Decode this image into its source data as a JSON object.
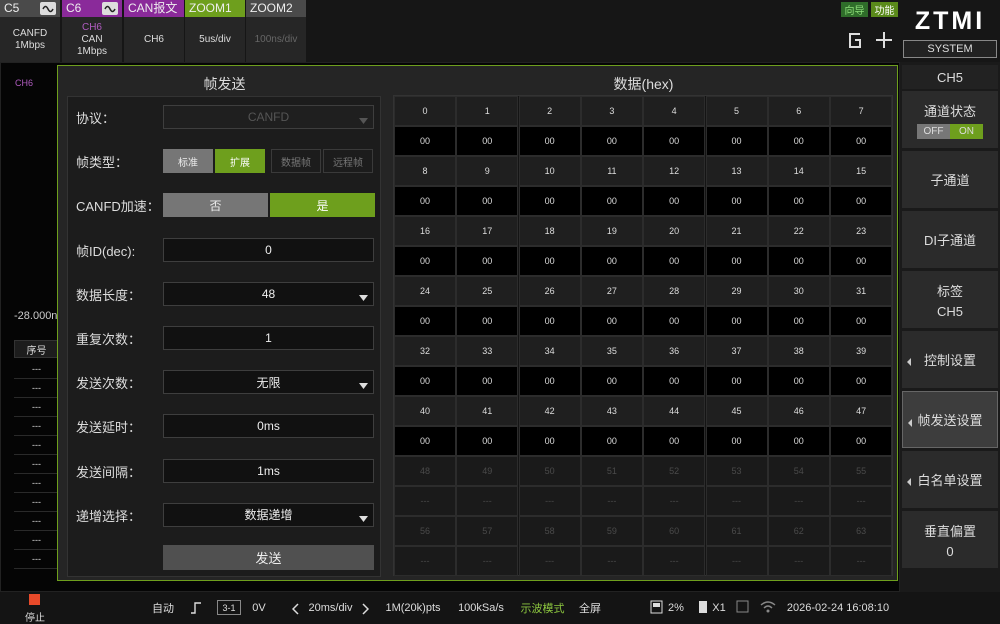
{
  "top_tabs": [
    {
      "name": "C5",
      "lines": [
        "CANFD",
        "1Mbps"
      ]
    },
    {
      "name": "C6",
      "lines": [
        "CH6",
        "CAN",
        "1Mbps"
      ]
    },
    {
      "name": "CAN报文",
      "lines": [
        "CH6"
      ]
    },
    {
      "name": "ZOOM1",
      "lines": [
        "5us/div"
      ]
    },
    {
      "name": "ZOOM2",
      "lines": [
        "100ns/div"
      ]
    }
  ],
  "top_right": {
    "guide": "向导",
    "function": "功能"
  },
  "logo": {
    "brand": "ZTMI",
    "system": "SYSTEM"
  },
  "sidebar": {
    "channel": "CH5",
    "items": [
      {
        "label": "通道状态",
        "toggle": [
          "OFF",
          "ON"
        ]
      },
      {
        "label": "子通道"
      },
      {
        "label": "DI子通道"
      },
      {
        "label": "标签",
        "value": "CH5"
      },
      {
        "label": "控制设置"
      },
      {
        "label": "帧发送设置",
        "selected": true
      },
      {
        "label": "白名单设置"
      },
      {
        "label": "垂直偏置",
        "value": "0"
      }
    ]
  },
  "background": {
    "channel_label": "CH6",
    "offset": "-28.000n",
    "table_header": "序号",
    "table_rows": [
      "---",
      "---",
      "---",
      "---",
      "---",
      "---",
      "---",
      "---",
      "---",
      "---",
      "---"
    ]
  },
  "form": {
    "title": "帧发送",
    "fields": [
      {
        "label": "协议：",
        "kind": "select",
        "value": "CANFD",
        "disabled": true
      },
      {
        "label": "帧类型：",
        "kind": "options",
        "options": [
          {
            "text": "标准"
          },
          {
            "text": "扩展",
            "selected": true
          },
          {
            "text": "数据帧",
            "disabled": true
          },
          {
            "text": "远程帧",
            "disabled": true
          }
        ]
      },
      {
        "label": "CANFD加速：",
        "kind": "options",
        "options": [
          {
            "text": "否"
          },
          {
            "text": "是",
            "selected": true
          }
        ]
      },
      {
        "label": "帧ID(dec):",
        "kind": "input",
        "value": 0
      },
      {
        "label": "数据长度：",
        "kind": "select",
        "value": 48
      },
      {
        "label": "重复次数：",
        "kind": "input",
        "value": 1
      },
      {
        "label": "发送次数：",
        "kind": "select",
        "value": "无限"
      },
      {
        "label": "发送延时：",
        "kind": "input",
        "value": "0ms"
      },
      {
        "label": "发送间隔：",
        "kind": "input",
        "value": "1ms"
      },
      {
        "label": "递增选择：",
        "kind": "select",
        "value": "数据递增"
      }
    ],
    "send_button": "发送"
  },
  "data_grid": {
    "title": "数据(hex)",
    "indices": [
      0,
      1,
      2,
      3,
      4,
      5,
      6,
      7,
      8,
      9,
      10,
      11,
      12,
      13,
      14,
      15,
      16,
      17,
      18,
      19,
      20,
      21,
      22,
      23,
      24,
      25,
      26,
      27,
      28,
      29,
      30,
      31,
      32,
      33,
      34,
      35,
      36,
      37,
      38,
      39,
      40,
      41,
      42,
      43,
      44,
      45,
      46,
      47,
      48,
      49,
      50,
      51,
      52,
      53,
      54,
      55,
      56,
      57,
      58,
      59,
      60,
      61,
      62,
      63
    ],
    "values": [
      "00",
      "00",
      "00",
      "00",
      "00",
      "00",
      "00",
      "00",
      "00",
      "00",
      "00",
      "00",
      "00",
      "00",
      "00",
      "00",
      "00",
      "00",
      "00",
      "00",
      "00",
      "00",
      "00",
      "00",
      "00",
      "00",
      "00",
      "00",
      "00",
      "00",
      "00",
      "00",
      "00",
      "00",
      "00",
      "00",
      "00",
      "00",
      "00",
      "00",
      "00",
      "00",
      "00",
      "00",
      "00",
      "00",
      "00",
      "00",
      "---",
      "---",
      "---",
      "---",
      "---",
      "---",
      "---",
      "---",
      "---",
      "---",
      "---",
      "---",
      "---",
      "---",
      "---",
      "---"
    ]
  },
  "bottom_bar": {
    "stop": "停止",
    "items": [
      "自动",
      "3-1",
      "0V",
      "20ms/div",
      "1M(20k)pts",
      "100kSa/s",
      "示波模式",
      "全屏",
      "2%",
      "X1",
      "2026-02-24 16:08:10"
    ]
  }
}
